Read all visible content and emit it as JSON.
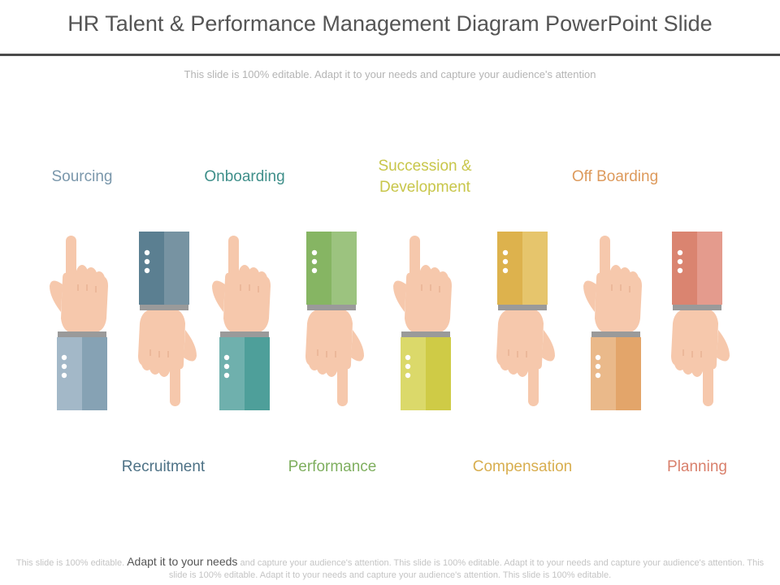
{
  "slide": {
    "title": "HR Talent  & Performance Management Diagram PowerPoint Slide",
    "subtitle": "This slide is 100% editable. Adapt it to your needs and capture your audience's attention"
  },
  "top_labels": [
    {
      "text": "Sourcing",
      "color": "#7a97ab"
    },
    {
      "text": "Onboarding",
      "color": "#3f8f8a"
    },
    {
      "text": "Succession & Development",
      "line1": "Succession &",
      "line2": "Development",
      "color": "#c8c64a"
    },
    {
      "text": "Off Boarding",
      "color": "#dd9a5c"
    }
  ],
  "bottom_labels": [
    {
      "text": "Recruitment",
      "color": "#4e7286"
    },
    {
      "text": "Performance",
      "color": "#7faf5f"
    },
    {
      "text": "Compensation",
      "color": "#d8ae4f"
    },
    {
      "text": "Planning",
      "color": "#d9806c"
    }
  ],
  "hands": [
    {
      "orientation": "up",
      "sleeve_light": "#a3b8c8",
      "sleeve_dark": "#86a2b4"
    },
    {
      "orientation": "down",
      "sleeve_light": "#7793a2",
      "sleeve_dark": "#5b7f91"
    },
    {
      "orientation": "up",
      "sleeve_light": "#6fb0ad",
      "sleeve_dark": "#4e9f9a"
    },
    {
      "orientation": "down",
      "sleeve_light": "#9cc37f",
      "sleeve_dark": "#86b563"
    },
    {
      "orientation": "up",
      "sleeve_light": "#dbd96a",
      "sleeve_dark": "#cfcb46"
    },
    {
      "orientation": "down",
      "sleeve_light": "#e6c56c",
      "sleeve_dark": "#ddb24d"
    },
    {
      "orientation": "up",
      "sleeve_light": "#eab98a",
      "sleeve_dark": "#e3a56a"
    },
    {
      "orientation": "down",
      "sleeve_light": "#e49b8d",
      "sleeve_dark": "#da8470"
    }
  ],
  "skin_color": "#f6c8ac",
  "footer": {
    "part1": "This slide is 100% editable.",
    "emphasis": "Adapt it to your needs",
    "part2": "and capture your audience's attention. This slide is 100% editable. Adapt it to your needs and capture your audience's attention. This slide is 100% editable. Adapt it to your needs and capture your audience's attention. This slide is 100% editable."
  }
}
